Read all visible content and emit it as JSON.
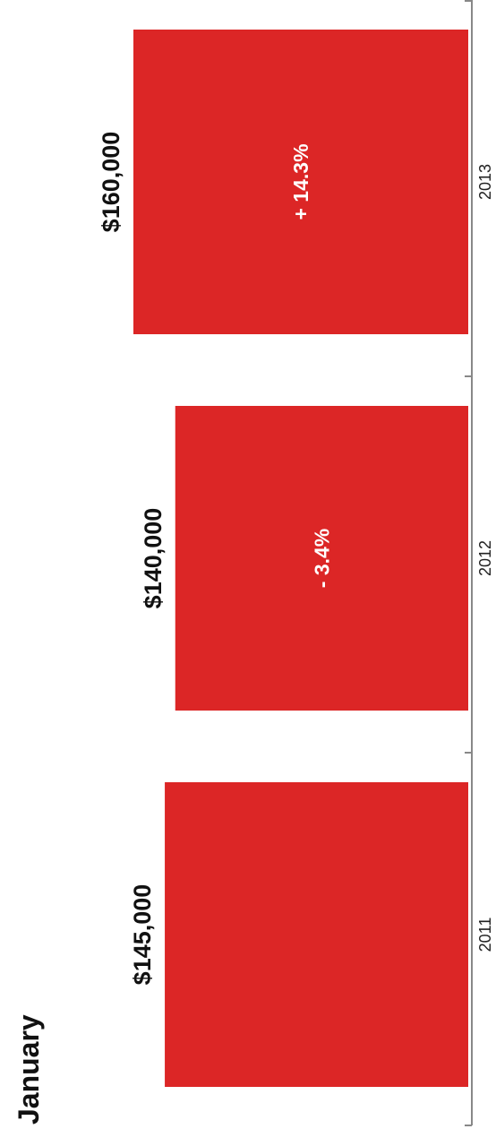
{
  "chart_data": {
    "type": "bar",
    "title": "January",
    "categories": [
      "2011",
      "2012",
      "2013"
    ],
    "values": [
      145000,
      140000,
      160000
    ],
    "value_labels": [
      "$145,000",
      "$140,000",
      "$160,000"
    ],
    "change_labels": [
      "",
      "- 3.4%",
      "+ 14.3%"
    ],
    "ylim": [
      0,
      160000
    ],
    "orientation": "rotated",
    "grid": false,
    "colors": {
      "bar": "#dc2626",
      "axis": "#888888",
      "value_text": "#111111",
      "change_text": "#ffffff"
    }
  }
}
